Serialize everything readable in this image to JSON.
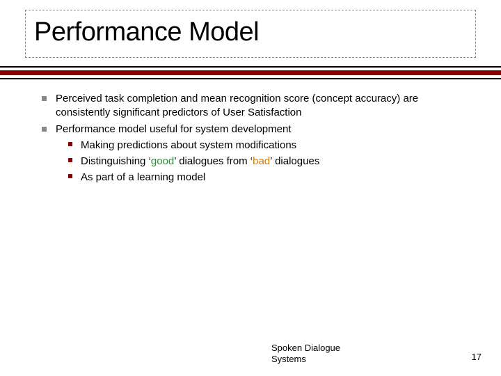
{
  "title": "Performance Model",
  "colors": {
    "accent_rule": "#8b0000",
    "bullet_lvl1": "#888888",
    "bullet_lvl2": "#8b0000",
    "good": "#2f8a3a",
    "bad": "#d97a00",
    "text": "#000000",
    "background": "#ffffff"
  },
  "bullets": {
    "b1_pre": "Perceived task completion",
    "b1_mid": " and ",
    "b1_post": "mean recognition score (concept accuracy)",
    "b1_tail": " are consistently significant predictors of User Satisfaction",
    "b2": "Performance model useful for system development",
    "b2_1_pre": "Making ",
    "b2_1_em": "predictions",
    "b2_1_post": " about system modifications",
    "b2_2_pre": "Distinguishing ‘",
    "b2_2_good": "good",
    "b2_2_mid": "’ dialogues from ‘",
    "b2_2_bad": "bad",
    "b2_2_post": "’ dialogues",
    "b2_3": "As part of a learning model"
  },
  "footer": {
    "line1": "Spoken Dialogue",
    "line2": "Systems"
  },
  "page_number": "17"
}
